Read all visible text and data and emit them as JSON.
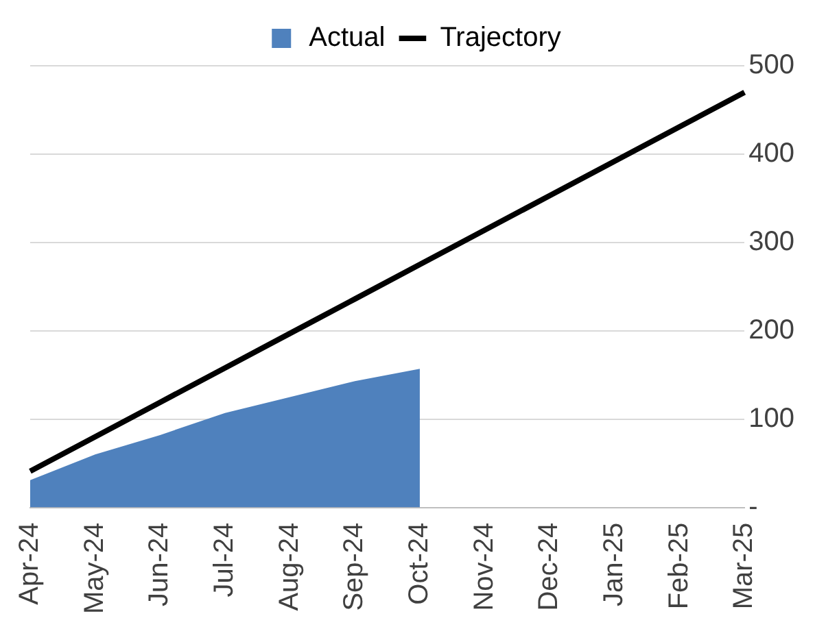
{
  "chart_data": {
    "type": "line",
    "categories": [
      "Apr-24",
      "May-24",
      "Jun-24",
      "Jul-24",
      "Aug-24",
      "Sep-24",
      "Oct-24",
      "Nov-24",
      "Dec-24",
      "Jan-25",
      "Feb-25",
      "Mar-25"
    ],
    "series": [
      {
        "name": "Actual",
        "type": "area",
        "color": "#4f81bd",
        "values": [
          31,
          60,
          82,
          107,
          125,
          143,
          157,
          null,
          null,
          null,
          null,
          null
        ]
      },
      {
        "name": "Trajectory",
        "color": "#000000",
        "values": [
          41,
          80,
          119,
          158,
          197,
          236,
          275,
          314,
          353,
          392,
          431,
          470
        ]
      }
    ],
    "ylim": [
      0,
      500
    ],
    "yticks": [
      {
        "value": 0,
        "label": "-"
      },
      100,
      200,
      300,
      400,
      500
    ],
    "grid": "y",
    "legend": "top",
    "marker": "none",
    "line_style": "solid"
  }
}
